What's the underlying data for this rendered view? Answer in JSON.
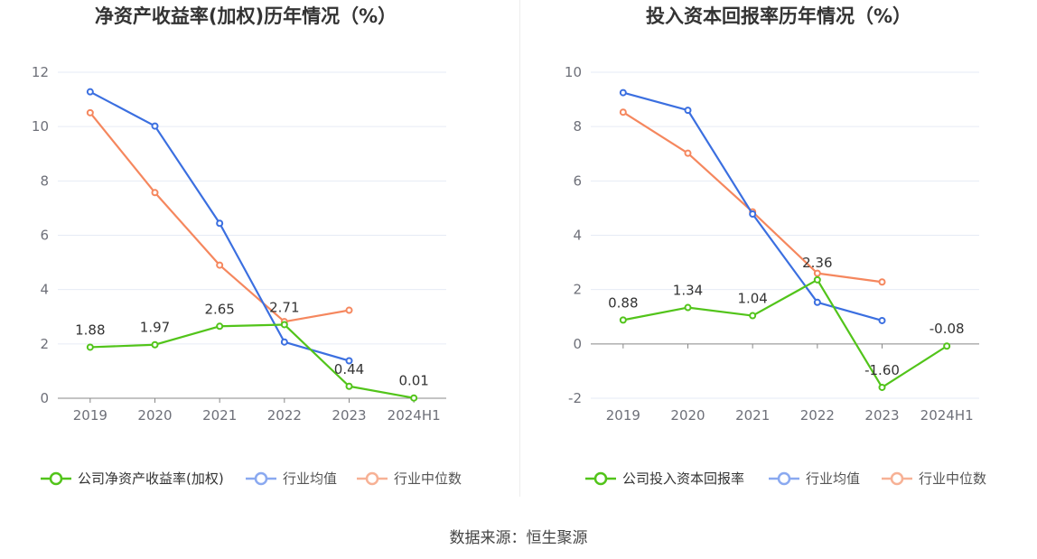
{
  "colors": {
    "company": "#52c41a",
    "industry_avg": "#3b6fe0",
    "industry_median": "#f5875e",
    "legend_avg": "#8aa9f0",
    "legend_median": "#f7b195",
    "grid": "#e6ebf5",
    "axis": "#888888"
  },
  "chart_data": [
    {
      "type": "line",
      "title": "净资产收益率(加权)历年情况（%）",
      "categories": [
        "2019",
        "2020",
        "2021",
        "2022",
        "2023",
        "2024H1"
      ],
      "ylim": [
        0,
        12
      ],
      "yticks": [
        0,
        2,
        4,
        6,
        8,
        10,
        12
      ],
      "series": [
        {
          "name": "公司净资产收益率(加权)",
          "key": "company",
          "values": [
            1.88,
            1.97,
            2.65,
            2.71,
            0.44,
            0.01
          ],
          "labels": [
            "1.88",
            "1.97",
            "2.65",
            "2.71",
            "0.44",
            "0.01"
          ]
        },
        {
          "name": "行业均值",
          "key": "industry_avg",
          "values": [
            11.28,
            10.02,
            6.44,
            2.07,
            1.38,
            null
          ]
        },
        {
          "name": "行业中位数",
          "key": "industry_median",
          "values": [
            10.51,
            7.57,
            4.9,
            2.82,
            3.24,
            null
          ]
        }
      ]
    },
    {
      "type": "line",
      "title": "投入资本回报率历年情况（%）",
      "categories": [
        "2019",
        "2020",
        "2021",
        "2022",
        "2023",
        "2024H1"
      ],
      "ylim": [
        -2,
        10
      ],
      "yticks": [
        -2,
        0,
        2,
        4,
        6,
        8,
        10
      ],
      "series": [
        {
          "name": "公司投入资本回报率",
          "key": "company",
          "values": [
            0.88,
            1.34,
            1.04,
            2.36,
            -1.6,
            -0.08
          ],
          "labels": [
            "0.88",
            "1.34",
            "1.04",
            "2.36",
            "-1.60",
            "-0.08"
          ]
        },
        {
          "name": "行业均值",
          "key": "industry_avg",
          "values": [
            9.25,
            8.6,
            4.78,
            1.53,
            0.86,
            null
          ]
        },
        {
          "name": "行业中位数",
          "key": "industry_median",
          "values": [
            8.53,
            7.02,
            4.86,
            2.6,
            2.28,
            null
          ]
        }
      ]
    }
  ],
  "footer": {
    "source": "数据来源：恒生聚源"
  }
}
